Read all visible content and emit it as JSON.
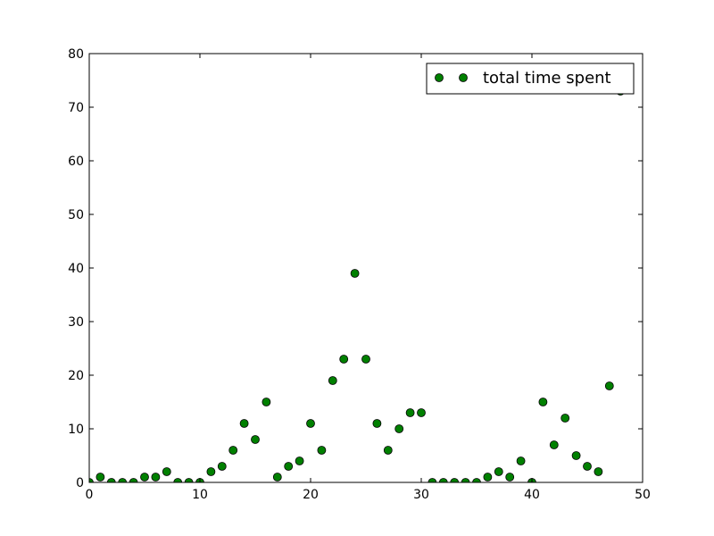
{
  "chart_data": {
    "type": "scatter",
    "title": "",
    "xlabel": "",
    "ylabel": "",
    "xlim": [
      0,
      50
    ],
    "ylim": [
      0,
      80
    ],
    "xticks": [
      0,
      10,
      20,
      30,
      40,
      50
    ],
    "yticks": [
      0,
      10,
      20,
      30,
      40,
      50,
      60,
      70,
      80
    ],
    "grid": false,
    "legend_position": "top-right",
    "marker_color": "#008000",
    "series": [
      {
        "name": "total time spent",
        "x": [
          0,
          1,
          2,
          3,
          4,
          5,
          6,
          7,
          8,
          9,
          10,
          11,
          12,
          13,
          14,
          15,
          16,
          17,
          18,
          19,
          20,
          21,
          22,
          23,
          24,
          25,
          26,
          27,
          28,
          29,
          30,
          31,
          32,
          33,
          34,
          35,
          36,
          37,
          38,
          39,
          40,
          41,
          42,
          43,
          44,
          45,
          46,
          47,
          48
        ],
        "y": [
          0,
          1,
          0,
          0,
          0,
          1,
          1,
          2,
          0,
          0,
          0,
          2,
          3,
          6,
          11,
          8,
          15,
          1,
          3,
          4,
          11,
          6,
          19,
          23,
          39,
          23,
          11,
          6,
          10,
          13,
          13,
          0,
          0,
          0,
          0,
          0,
          1,
          2,
          1,
          4,
          0,
          15,
          7,
          12,
          5,
          3,
          2,
          18,
          73
        ]
      }
    ]
  }
}
